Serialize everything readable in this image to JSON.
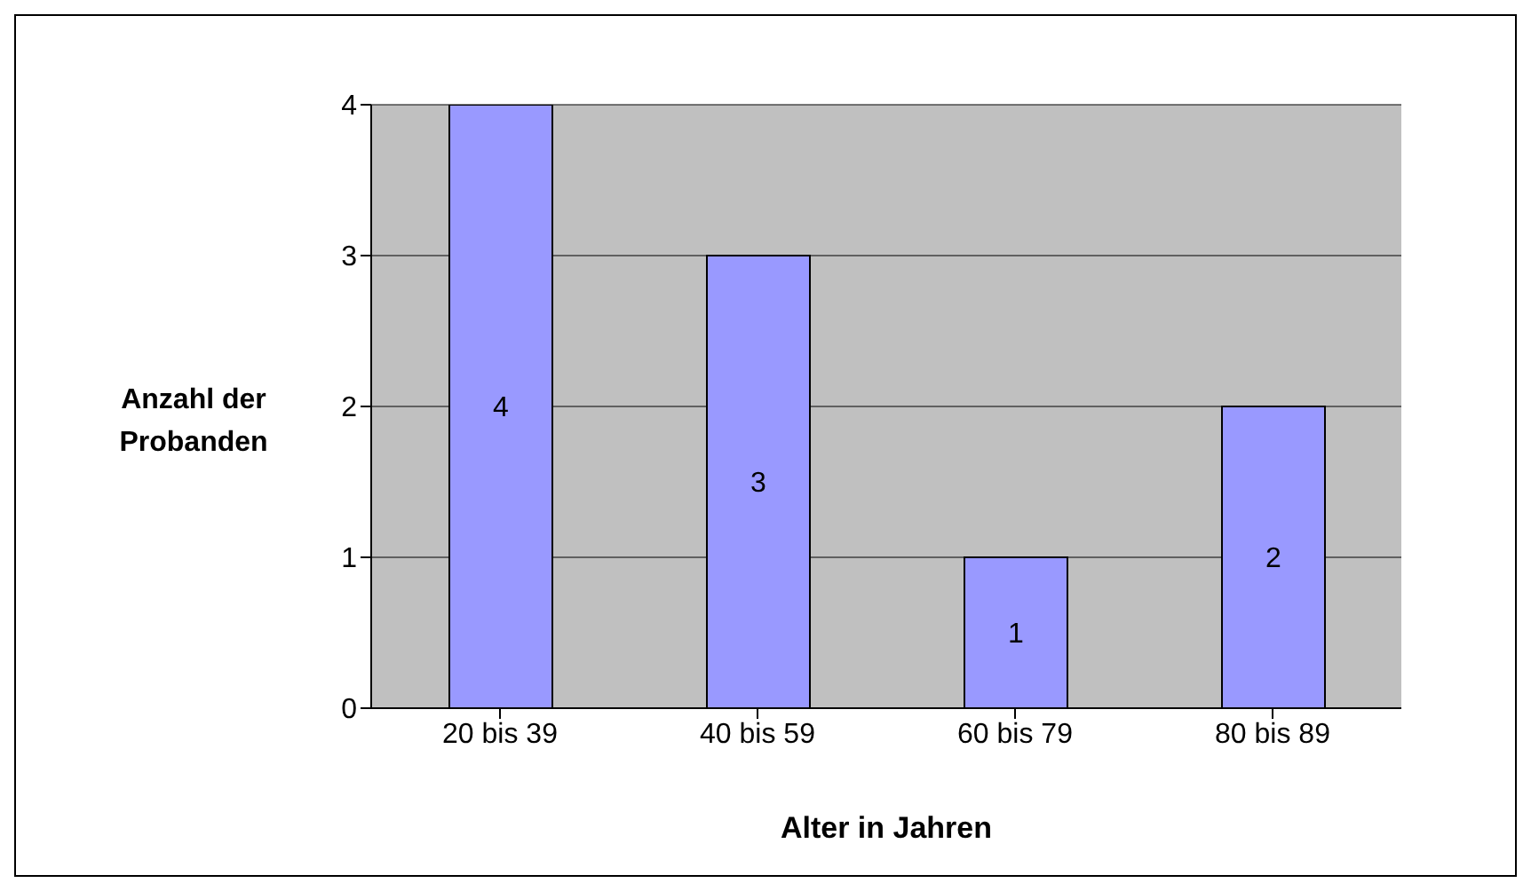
{
  "chart_data": {
    "type": "bar",
    "xlabel": "Alter in Jahren",
    "ylabel": "Anzahl der Probanden",
    "categories": [
      "20 bis 39",
      "40 bis 59",
      "60 bis 79",
      "80 bis 89"
    ],
    "values": [
      4,
      3,
      1,
      2
    ],
    "color": "#9999ff",
    "ylim": [
      0,
      4
    ],
    "yticks": [
      0,
      1,
      2,
      3,
      4
    ],
    "grid": "y",
    "data_labels": true,
    "legend": false
  }
}
